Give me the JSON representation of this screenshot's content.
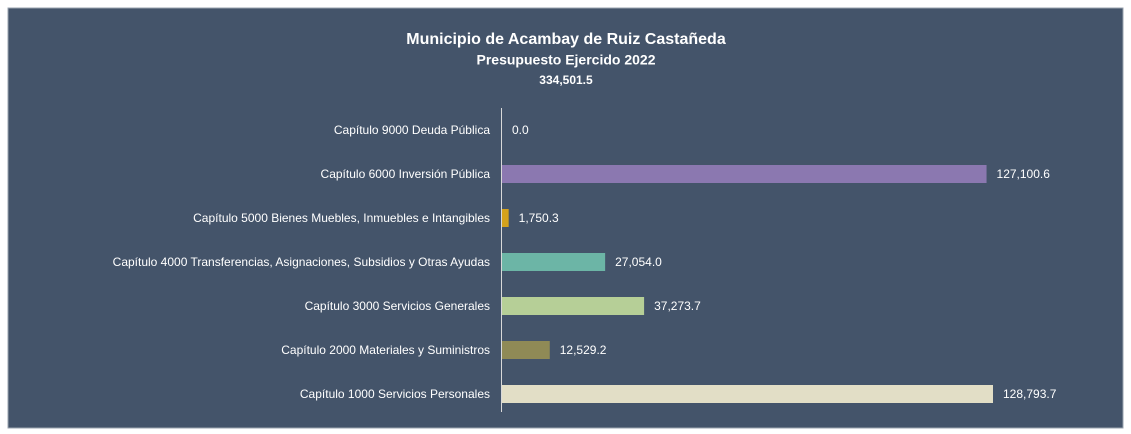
{
  "chart_data": {
    "type": "bar",
    "orientation": "horizontal",
    "title": "Municipio de Acambay de Ruiz Castañeda",
    "subtitle": "Presupuesto Ejercido 2022",
    "total": "334,501.5",
    "categories": [
      "Capítulo 9000 Deuda Pública",
      "Capítulo 6000 Inversión Pública",
      "Capítulo 5000 Bienes Muebles, Inmuebles e Intangibles",
      "Capítulo 4000 Transferencias, Asignaciones, Subsidios y Otras Ayudas",
      "Capítulo 3000 Servicios Generales",
      "Capítulo 2000 Materiales y Suministros",
      "Capítulo 1000 Servicios Personales"
    ],
    "values": [
      0,
      127100.6,
      1750.3,
      27054.0,
      37273.7,
      12529.2,
      128793.7
    ],
    "value_labels": [
      "0.0",
      "127,100.6",
      "1,750.3",
      "27,054.0",
      "37,273.7",
      "12,529.2",
      "128,793.7"
    ],
    "colors": [
      "#8b78b0",
      "#8b78b0",
      "#d4a21c",
      "#6cb5a6",
      "#b6cf97",
      "#8f8a56",
      "#e2dec6"
    ],
    "xlim": [
      0,
      130000
    ]
  }
}
